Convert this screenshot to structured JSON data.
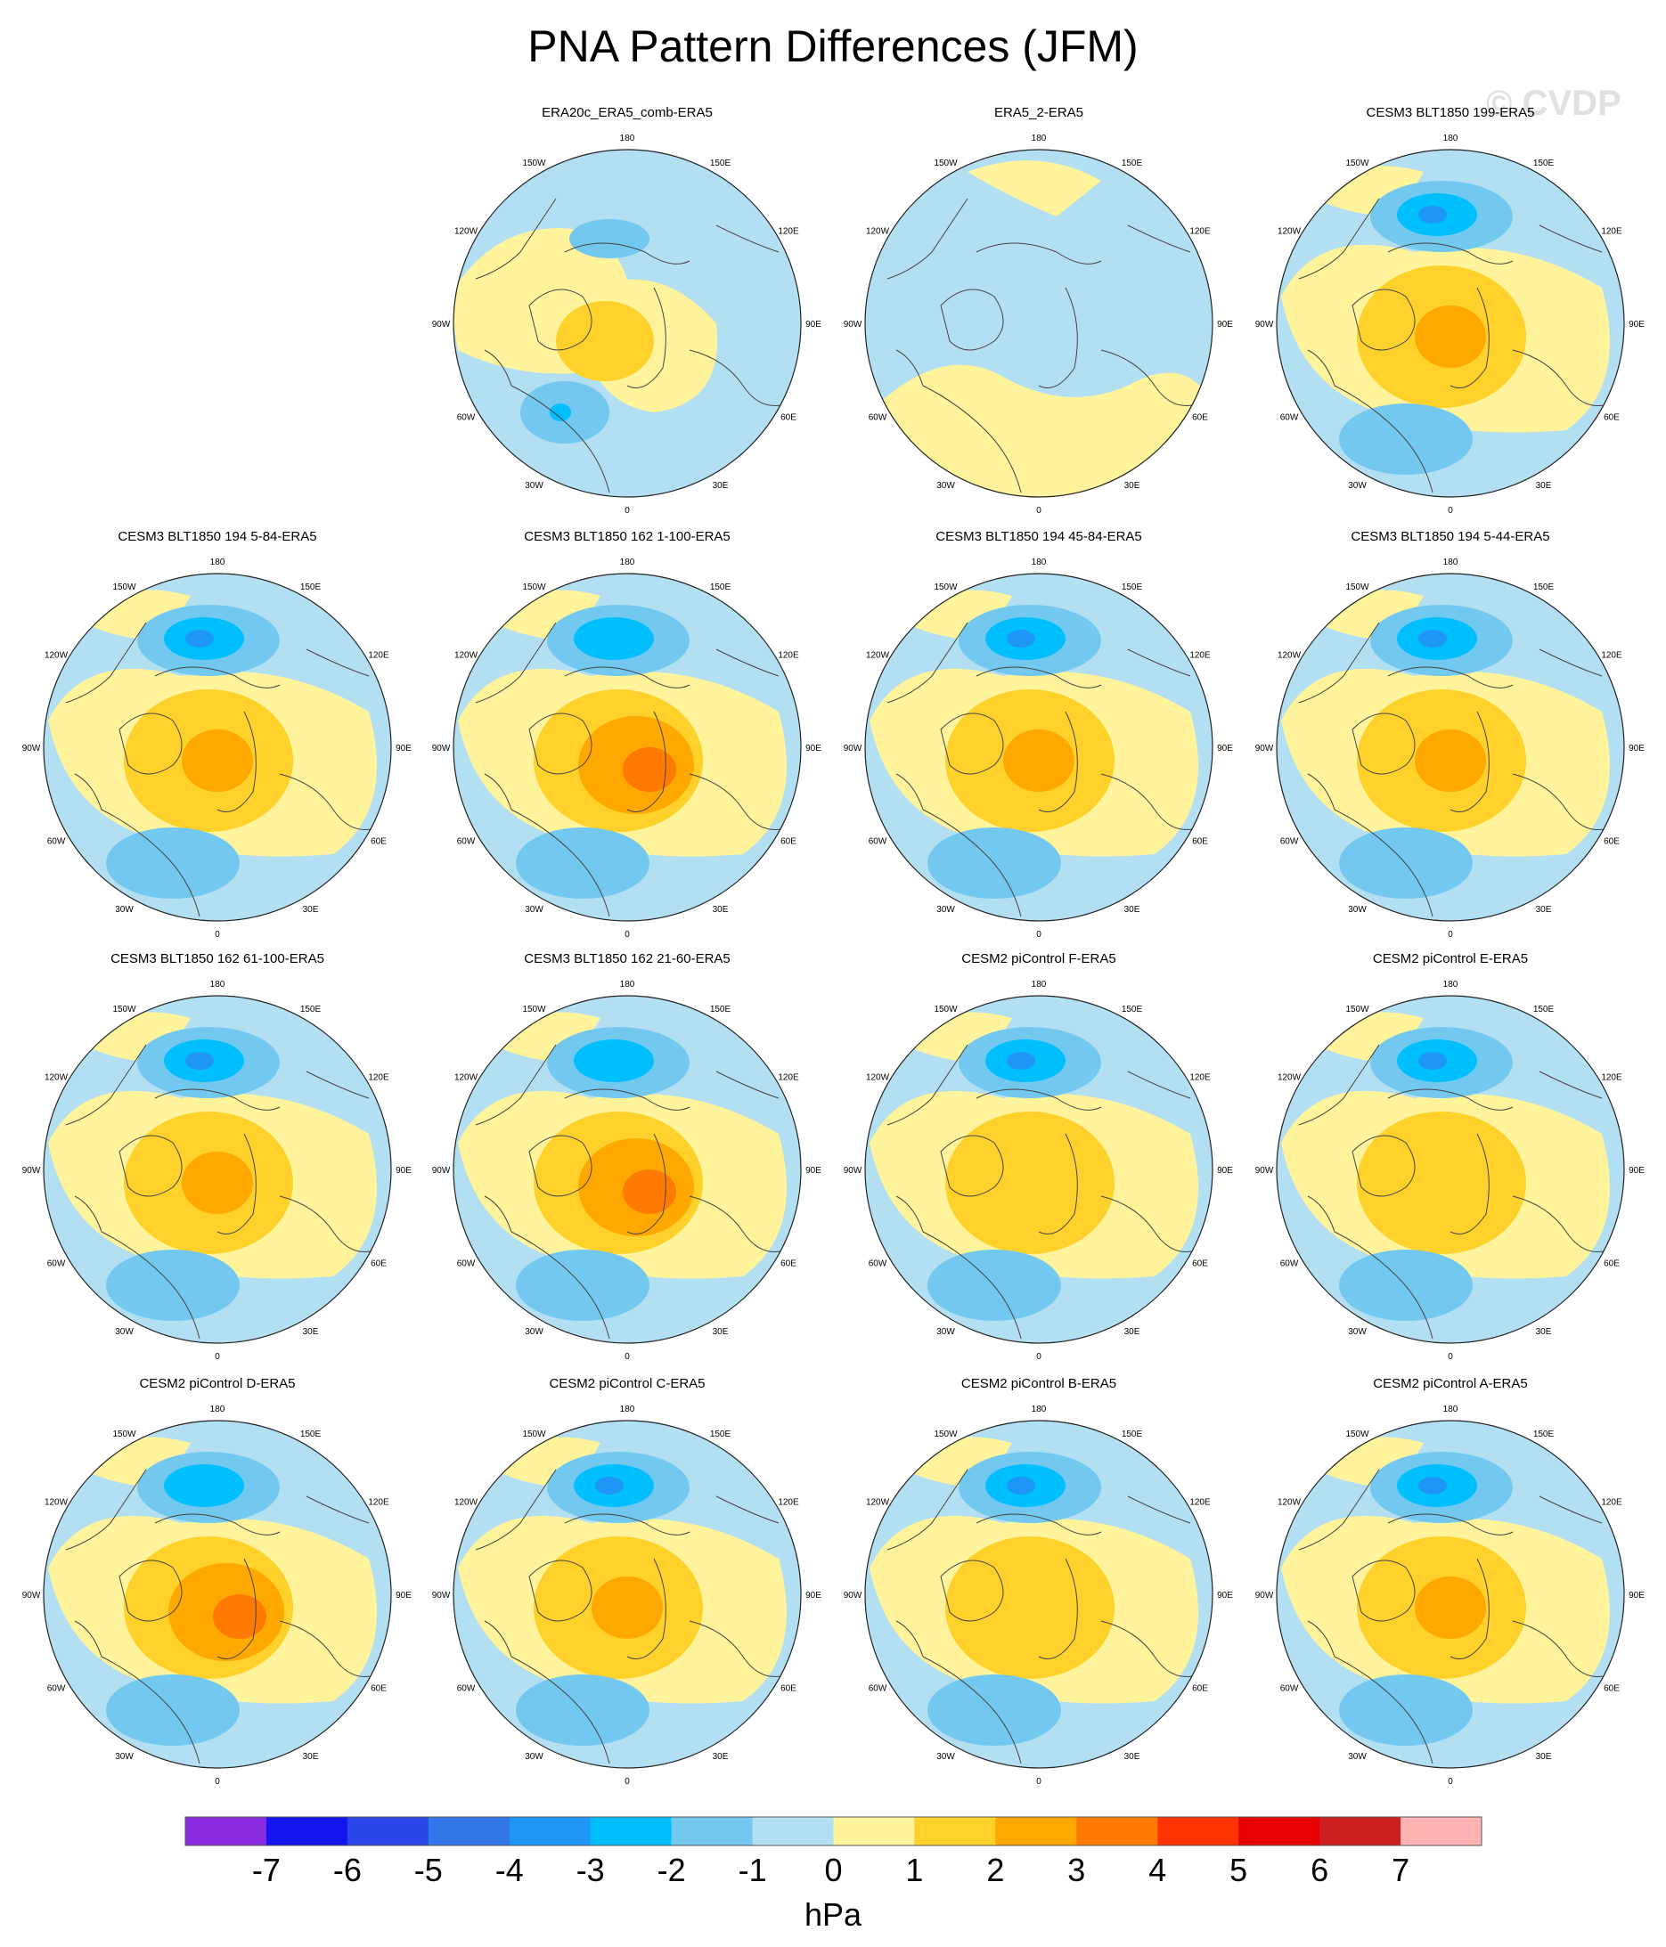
{
  "title": "PNA Pattern Differences (JFM)",
  "watermark": "© CVDP",
  "longitude_labels": [
    "180",
    "150E",
    "120E",
    "90E",
    "60E",
    "30E",
    "0",
    "30W",
    "60W",
    "90W",
    "120W",
    "150W"
  ],
  "panels": [
    {
      "title": "ERA20c_ERA5_comb-ERA5",
      "pattern": "weak"
    },
    {
      "title": "ERA5_2-ERA5",
      "pattern": "flat"
    },
    {
      "title": "CESM3 BLT1850 199-ERA5",
      "pattern": "pna"
    },
    {
      "title": "CESM3 BLT1850 194 5-84-ERA5",
      "pattern": "pna"
    },
    {
      "title": "CESM3 BLT1850 162 1-100-ERA5",
      "pattern": "pna-strong"
    },
    {
      "title": "CESM3 BLT1850 194 45-84-ERA5",
      "pattern": "pna"
    },
    {
      "title": "CESM3 BLT1850 194 5-44-ERA5",
      "pattern": "pna"
    },
    {
      "title": "CESM3 BLT1850 162 61-100-ERA5",
      "pattern": "pna"
    },
    {
      "title": "CESM3 BLT1850 162 21-60-ERA5",
      "pattern": "pna-strong"
    },
    {
      "title": "CESM2 piControl F-ERA5",
      "pattern": "pna-low"
    },
    {
      "title": "CESM2 piControl E-ERA5",
      "pattern": "pna-low"
    },
    {
      "title": "CESM2 piControl D-ERA5",
      "pattern": "pna-strong"
    },
    {
      "title": "CESM2 piControl C-ERA5",
      "pattern": "pna"
    },
    {
      "title": "CESM2 piControl B-ERA5",
      "pattern": "pna-low"
    },
    {
      "title": "CESM2 piControl A-ERA5",
      "pattern": "pna"
    }
  ],
  "colorbar": {
    "unit": "hPa",
    "tick_labels": [
      "-7",
      "-6",
      "-5",
      "-4",
      "-3",
      "-2",
      "-1",
      "0",
      "1",
      "2",
      "3",
      "4",
      "5",
      "6",
      "7"
    ],
    "colors": [
      "#8a2be2",
      "#1414f0",
      "#2a46e8",
      "#3275e6",
      "#1e96f5",
      "#00bfff",
      "#73c8f0",
      "#b3dff3",
      "#fff49b",
      "#ffd12a",
      "#ffa900",
      "#ff7a00",
      "#ff3300",
      "#e80000",
      "#cc1f1f",
      "#ffb3b3"
    ]
  }
}
